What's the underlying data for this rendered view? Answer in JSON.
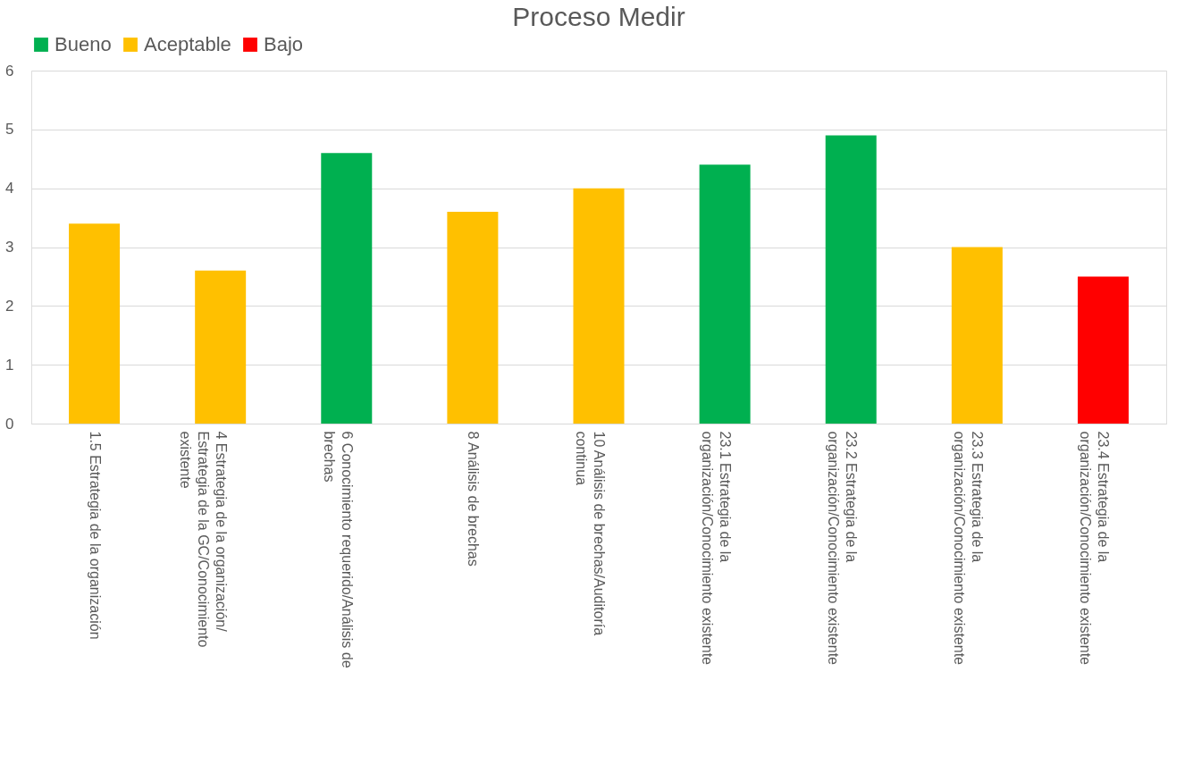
{
  "chart_data": {
    "type": "bar",
    "title": "Proceso Medir",
    "categories": [
      "1.5 Estrategia de la organización",
      "4 Estrategia de la organización/ Estrategia de la GC/Conocimiento existente",
      "6 Conocimiento requerido/Análisis de brechas",
      "8 Análisis de brechas",
      "10 Análisis de brechas/Auditoría continua",
      "23.1 Estrategia de la organización/Conocimiento existente",
      "23.2 Estrategia de la organización/Conocimiento existente",
      "23.3 Estrategia de la organización/Conocimiento existente",
      "23.4 Estrategia de la organización/Conocimiento existente"
    ],
    "series": [
      {
        "name": "Bueno",
        "color": "#00b050",
        "values": [
          null,
          null,
          4.6,
          null,
          null,
          4.4,
          4.9,
          null,
          null
        ]
      },
      {
        "name": "Aceptable",
        "color": "#ffc000",
        "values": [
          3.4,
          2.6,
          null,
          3.6,
          4.0,
          null,
          null,
          3.0,
          null
        ]
      },
      {
        "name": "Bajo",
        "color": "#ff0000",
        "values": [
          null,
          null,
          null,
          null,
          null,
          null,
          null,
          null,
          2.5
        ]
      }
    ],
    "ylim": [
      0,
      6
    ],
    "yticks": [
      0,
      1,
      2,
      3,
      4,
      5,
      6
    ],
    "grid": "y",
    "legend": "top"
  }
}
